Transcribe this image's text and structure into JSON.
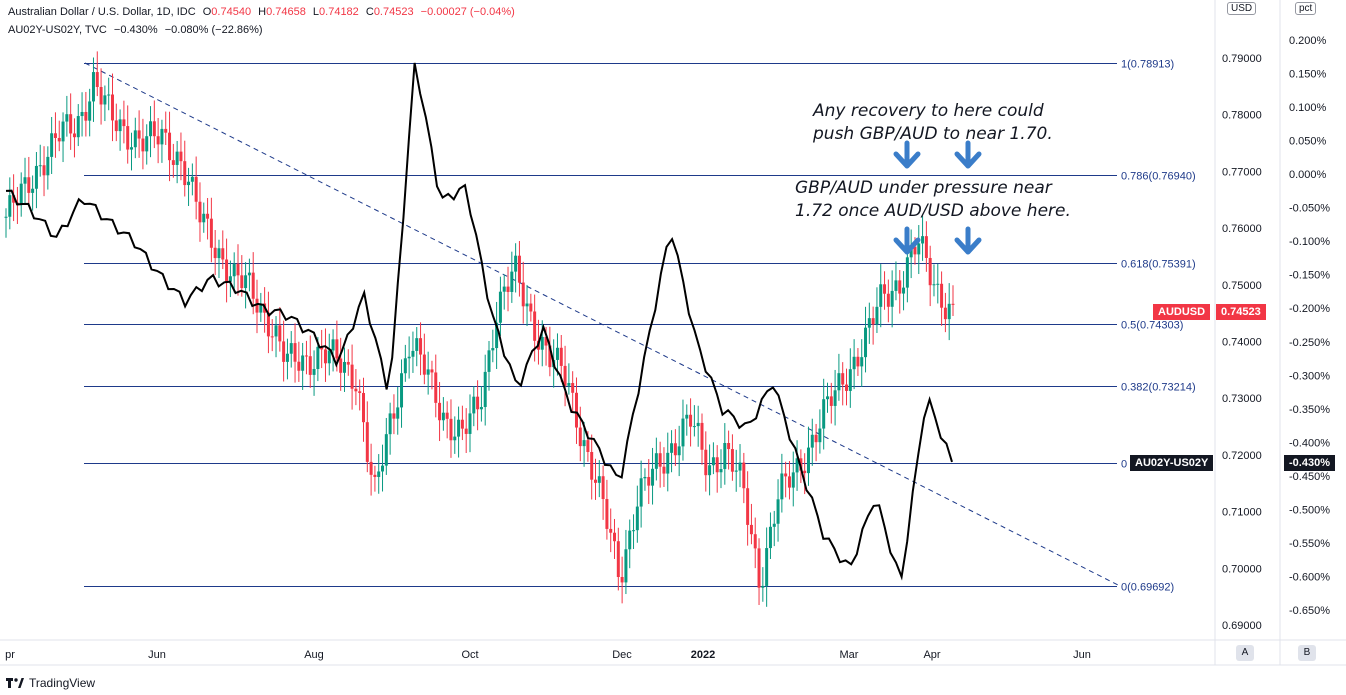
{
  "header": {
    "line1": {
      "name": "Australian Dollar / U.S. Dollar, 1D, IDC",
      "open_label": "O",
      "open": "0.74540",
      "high_label": "H",
      "high": "0.74658",
      "low_label": "L",
      "low": "0.74182",
      "close_label": "C",
      "close": "0.74523",
      "change": "−0.00027 (−0.04%)"
    },
    "line2": {
      "name": "AU02Y-US02Y, TVC",
      "value": "−0.430%",
      "change": "−0.080% (−22.86%)"
    }
  },
  "axes": {
    "left_unit": "USD",
    "right_unit": "pct",
    "left_ticks": [
      "0.79000",
      "0.78000",
      "0.77000",
      "0.76000",
      "0.75000",
      "0.74000",
      "0.73000",
      "0.72000",
      "0.71000",
      "0.70000",
      "0.69000"
    ],
    "left_top_partial": "0.80000",
    "right_ticks": [
      "0.200%",
      "0.150%",
      "0.100%",
      "0.050%",
      "0.000%",
      "-0.050%",
      "-0.100%",
      "-0.150%",
      "-0.200%",
      "-0.250%",
      "-0.300%",
      "-0.350%",
      "-0.400%",
      "-0.450%",
      "-0.500%",
      "-0.550%",
      "-0.600%",
      "-0.650%"
    ],
    "right_top_partial": "0.250%",
    "x_ticks": [
      "pr",
      "Jun",
      "Aug",
      "Oct",
      "Dec",
      "2022",
      "Mar",
      "Apr",
      "Jun"
    ],
    "scale_buttons": [
      "A",
      "B"
    ]
  },
  "fib_levels": [
    {
      "label": "1(0.78913)",
      "price": 0.78913
    },
    {
      "label": "0.786(0.76940)",
      "price": 0.7694
    },
    {
      "label": "0.618(0.75391)",
      "price": 0.75391
    },
    {
      "label": "0.5(0.74303)",
      "price": 0.74303
    },
    {
      "label": "0.382(0.73214)",
      "price": 0.73214
    },
    {
      "label": "0",
      "price": 0.71861
    },
    {
      "label": "0(0.69692)",
      "price": 0.69692
    }
  ],
  "badges": {
    "audusd_name": "AUDUSD",
    "audusd_value": "0.74523",
    "spread_name": "AU02Y-US02Y",
    "spread_value": "-0.430%"
  },
  "annotations": {
    "note1_line1": "Any recovery to here could",
    "note1_line2": "push GBP/AUD to near 1.70.",
    "note2_line1": "GBP/AUD under pressure near",
    "note2_line2": "1.72 once AUD/USD above here."
  },
  "brand": "TradingView",
  "colors": {
    "up": "#089981",
    "down": "#f23645",
    "fib": "#1e3a8a",
    "trend": "#1e3a8a",
    "spread": "#000000",
    "arrow": "#3a7dc9"
  },
  "chart_data": {
    "type": "line",
    "title": "Australian Dollar / U.S. Dollar, 1D, IDC",
    "ylim_usd": [
      0.686,
      0.804
    ],
    "ylim_pct": [
      -0.675,
      0.255
    ],
    "series": [
      {
        "name": "AUDUSD",
        "kind": "candlestick-close",
        "points": [
          [
            "Apr",
            0.762
          ],
          [
            "Apr",
            0.766
          ],
          [
            "May",
            0.772
          ],
          [
            "May",
            0.776
          ],
          [
            "May",
            0.778
          ],
          [
            "May",
            0.786
          ],
          [
            "May",
            0.779
          ],
          [
            "May",
            0.777
          ],
          [
            "Jun",
            0.775
          ],
          [
            "Jun",
            0.776
          ],
          [
            "Jun",
            0.772
          ],
          [
            "Jun",
            0.762
          ],
          [
            "Jul",
            0.757
          ],
          [
            "Jul",
            0.751
          ],
          [
            "Jul",
            0.749
          ],
          [
            "Jul",
            0.744
          ],
          [
            "Jul",
            0.736
          ],
          [
            "Jul",
            0.737
          ],
          [
            "Aug",
            0.738
          ],
          [
            "Aug",
            0.736
          ],
          [
            "Aug",
            0.734
          ],
          [
            "Aug",
            0.712
          ],
          [
            "Sep",
            0.727
          ],
          [
            "Sep",
            0.74
          ],
          [
            "Sep",
            0.734
          ],
          [
            "Sep",
            0.727
          ],
          [
            "Oct",
            0.723
          ],
          [
            "Oct",
            0.729
          ],
          [
            "Oct",
            0.746
          ],
          [
            "Oct",
            0.752
          ],
          [
            "Nov",
            0.744
          ],
          [
            "Nov",
            0.737
          ],
          [
            "Nov",
            0.733
          ],
          [
            "Nov",
            0.722
          ],
          [
            "Dec",
            0.711
          ],
          [
            "Dec",
            0.699
          ],
          [
            "Dec",
            0.712
          ],
          [
            "Dec",
            0.717
          ],
          [
            "Jan",
            0.722
          ],
          [
            "Jan",
            0.726
          ],
          [
            "Jan",
            0.718
          ],
          [
            "Jan",
            0.721
          ],
          [
            "Feb",
            0.714
          ],
          [
            "Feb",
            0.698
          ],
          [
            "Feb",
            0.712
          ],
          [
            "Feb",
            0.717
          ],
          [
            "Mar",
            0.723
          ],
          [
            "Mar",
            0.729
          ],
          [
            "Mar",
            0.735
          ],
          [
            "Mar",
            0.74
          ],
          [
            "Mar",
            0.748
          ],
          [
            "Mar",
            0.751
          ],
          [
            "Apr",
            0.757
          ],
          [
            "Apr",
            0.75
          ],
          [
            "Apr",
            0.745
          ]
        ]
      },
      {
        "name": "AU02Y-US02Y",
        "kind": "line-pct",
        "points": [
          [
            "Apr",
            -0.025
          ],
          [
            "Apr",
            -0.055
          ],
          [
            "May",
            -0.095
          ],
          [
            "May",
            -0.035
          ],
          [
            "May",
            -0.07
          ],
          [
            "Jun",
            -0.1
          ],
          [
            "Jun",
            -0.15
          ],
          [
            "Jul",
            -0.19
          ],
          [
            "Jul",
            -0.155
          ],
          [
            "Aug",
            -0.17
          ],
          [
            "Aug",
            -0.2
          ],
          [
            "Sep",
            -0.21
          ],
          [
            "Sep",
            -0.24
          ],
          [
            "Oct",
            -0.28
          ],
          [
            "Oct",
            -0.18
          ],
          [
            "Oct",
            -0.33
          ],
          [
            "Oct",
            0.17
          ],
          [
            "Nov",
            -0.04
          ],
          [
            "Nov",
            -0.02
          ],
          [
            "Nov",
            -0.21
          ],
          [
            "Nov",
            -0.32
          ],
          [
            "Dec",
            -0.23
          ],
          [
            "Dec",
            -0.34
          ],
          [
            "Jan",
            -0.4
          ],
          [
            "Jan",
            -0.46
          ],
          [
            "Jan",
            -0.27
          ],
          [
            "Feb",
            -0.08
          ],
          [
            "Feb",
            -0.25
          ],
          [
            "Feb",
            -0.35
          ],
          [
            "Mar",
            -0.38
          ],
          [
            "Mar",
            -0.31
          ],
          [
            "Mar",
            -0.43
          ],
          [
            "Mar",
            -0.54
          ],
          [
            "Mar",
            -0.59
          ],
          [
            "Mar",
            -0.48
          ],
          [
            "Apr",
            -0.61
          ],
          [
            "Apr",
            -0.33
          ],
          [
            "Apr",
            -0.43
          ]
        ]
      }
    ],
    "trendline": {
      "from": [
        "May",
        0.7895
      ],
      "to": [
        "Jun",
        0.6975
      ]
    }
  }
}
